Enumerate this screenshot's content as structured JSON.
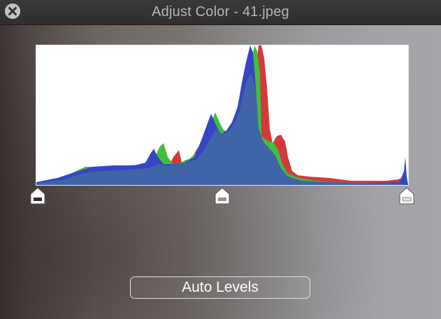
{
  "window": {
    "title": "Adjust Color - 41.jpeg"
  },
  "histogram": {
    "channels": [
      "red",
      "green",
      "blue"
    ],
    "colors": {
      "red": "#d23a3a",
      "green": "#3fbf3f",
      "blue": "#3546c4",
      "overlap": "#3f64a8",
      "background": "#ffffff"
    }
  },
  "levels": {
    "black_point": 0.0,
    "gamma_point": 0.5,
    "white_point": 1.0
  },
  "buttons": {
    "auto_levels_label": "Auto Levels"
  },
  "icons": {
    "close": "close-icon",
    "handle": "slider-handle-icon"
  }
}
